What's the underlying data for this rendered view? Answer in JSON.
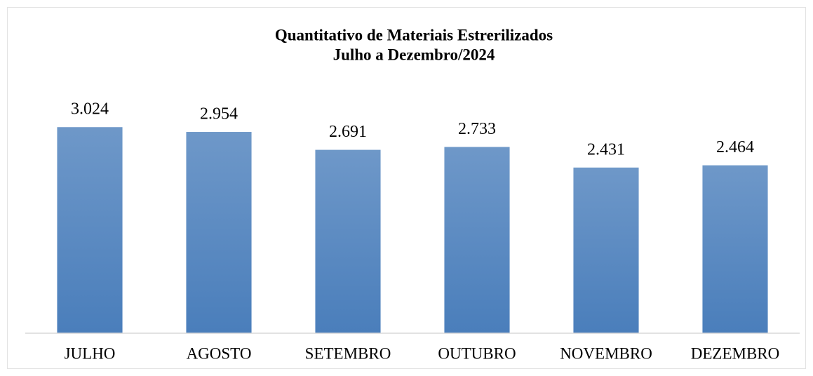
{
  "chart_data": {
    "type": "bar",
    "title": "Quantitativo de Materiais Estrerilizados",
    "subtitle": "Julho a Dezembro/2024",
    "categories": [
      "JULHO",
      "AGOSTO",
      "SETEMBRO",
      "OUTUBRO",
      "NOVEMBRO",
      "DEZEMBRO"
    ],
    "values": [
      3024,
      2954,
      2691,
      2733,
      2431,
      2464
    ],
    "value_labels": [
      "3.024",
      "2.954",
      "2.691",
      "2.733",
      "2.431",
      "2.464"
    ],
    "color": "#4a7ebb",
    "ylim": [
      0,
      3500
    ]
  }
}
